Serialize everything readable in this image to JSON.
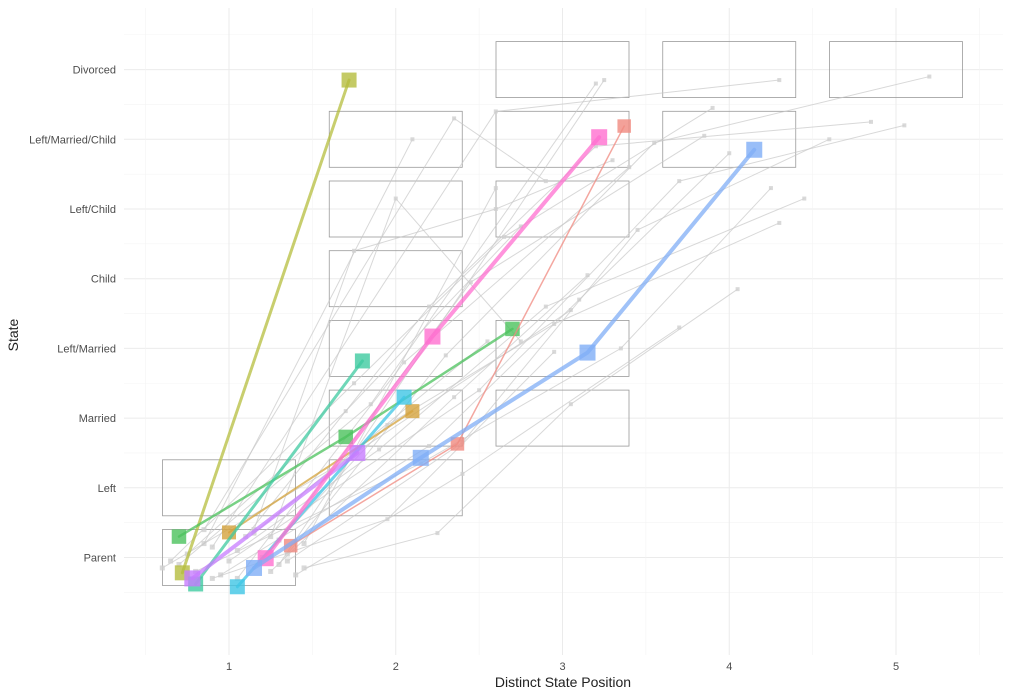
{
  "chart_data": {
    "type": "line",
    "xlabel": "Distinct State Position",
    "ylabel": "State",
    "x_ticks": [
      1,
      2,
      3,
      4,
      5
    ],
    "y_categories": [
      "Parent",
      "Left",
      "Married",
      "Left/Married",
      "Child",
      "Left/Child",
      "Left/Married/Child",
      "Divorced"
    ],
    "xlim": [
      0.35,
      5.65
    ],
    "grid": true,
    "legend": "none",
    "colors": {
      "background_line": "#c8c8c8",
      "grid_major": "#ebebeb",
      "box_stroke": "#9a9a9a"
    },
    "state_boxes": [
      {
        "x": 1,
        "state": "Left"
      },
      {
        "x": 1,
        "state": "Parent"
      },
      {
        "x": 2,
        "state": "Left/Married/Child"
      },
      {
        "x": 2,
        "state": "Left/Child"
      },
      {
        "x": 2,
        "state": "Child"
      },
      {
        "x": 2,
        "state": "Left/Married"
      },
      {
        "x": 2,
        "state": "Married"
      },
      {
        "x": 2,
        "state": "Left"
      },
      {
        "x": 3,
        "state": "Divorced"
      },
      {
        "x": 3,
        "state": "Left/Married/Child"
      },
      {
        "x": 3,
        "state": "Left/Child"
      },
      {
        "x": 3,
        "state": "Left/Married"
      },
      {
        "x": 3,
        "state": "Married"
      },
      {
        "x": 4,
        "state": "Divorced"
      },
      {
        "x": 4,
        "state": "Left/Married/Child"
      },
      {
        "x": 5,
        "state": "Divorced"
      }
    ],
    "background_series": [
      {
        "points": [
          [
            0.85,
            1.2
          ],
          [
            2.1,
            7.0
          ]
        ]
      },
      {
        "points": [
          [
            1.3,
            0.9
          ],
          [
            3.25,
            7.85
          ]
        ]
      },
      {
        "points": [
          [
            1.15,
            1.35
          ],
          [
            2.55,
            4.1
          ]
        ]
      },
      {
        "points": [
          [
            0.7,
            0.9
          ],
          [
            1.85,
            3.2
          ],
          [
            3.2,
            7.8
          ]
        ]
      },
      {
        "points": [
          [
            1.45,
            1.2
          ],
          [
            2.6,
            6.3
          ]
        ]
      },
      {
        "points": [
          [
            1.05,
            0.7
          ],
          [
            2.05,
            3.8
          ],
          [
            3.4,
            6.6
          ]
        ]
      },
      {
        "points": [
          [
            0.9,
            1.15
          ],
          [
            2.6,
            7.4
          ],
          [
            4.3,
            7.85
          ]
        ]
      },
      {
        "points": [
          [
            1.25,
            0.8
          ],
          [
            2.35,
            3.3
          ],
          [
            3.15,
            5.05
          ]
        ]
      },
      {
        "points": [
          [
            0.6,
            0.85
          ],
          [
            1.6,
            2.25
          ],
          [
            3.05,
            4.55
          ]
        ]
      },
      {
        "points": [
          [
            1.4,
            0.75
          ],
          [
            2.4,
            2.2
          ],
          [
            3.7,
            4.3
          ]
        ]
      },
      {
        "points": [
          [
            0.75,
            1.05
          ],
          [
            1.7,
            3.1
          ],
          [
            2.75,
            5.75
          ]
        ]
      },
      {
        "points": [
          [
            1.1,
            1.3
          ],
          [
            2.2,
            4.6
          ],
          [
            3.2,
            6.9
          ],
          [
            4.85,
            7.25
          ]
        ]
      },
      {
        "points": [
          [
            1.35,
            1.05
          ],
          [
            2.3,
            3.9
          ],
          [
            3.55,
            6.95
          ],
          [
            5.2,
            7.9
          ]
        ]
      },
      {
        "points": [
          [
            0.95,
            0.75
          ],
          [
            2.2,
            2.6
          ],
          [
            3.1,
            4.7
          ],
          [
            4.0,
            6.8
          ]
        ]
      },
      {
        "points": [
          [
            1.2,
            1.0
          ],
          [
            1.95,
            2.9
          ],
          [
            2.95,
            4.35
          ],
          [
            4.3,
            5.8
          ]
        ]
      },
      {
        "points": [
          [
            1.0,
            0.95
          ],
          [
            2.5,
            3.4
          ],
          [
            3.7,
            6.4
          ],
          [
            5.05,
            7.2
          ]
        ]
      },
      {
        "points": [
          [
            0.8,
            0.8
          ],
          [
            2.15,
            2.35
          ],
          [
            3.35,
            4.0
          ],
          [
            4.25,
            6.3
          ]
        ]
      },
      {
        "points": [
          [
            1.3,
            1.25
          ],
          [
            2.45,
            4.95
          ],
          [
            3.85,
            7.05
          ]
        ]
      },
      {
        "points": [
          [
            1.05,
            1.1
          ],
          [
            1.9,
            2.55
          ],
          [
            2.9,
            4.6
          ],
          [
            4.45,
            6.15
          ]
        ]
      },
      {
        "points": [
          [
            0.65,
            0.95
          ],
          [
            1.75,
            3.5
          ],
          [
            2.65,
            5.6
          ],
          [
            3.9,
            7.45
          ]
        ]
      },
      {
        "points": [
          [
            1.45,
            0.85
          ],
          [
            2.25,
            1.35
          ],
          [
            3.05,
            3.2
          ],
          [
            4.05,
            4.85
          ]
        ]
      },
      {
        "points": [
          [
            1.15,
            1.4
          ],
          [
            1.75,
            5.4
          ],
          [
            2.6,
            6.0
          ],
          [
            3.3,
            6.7
          ]
        ]
      },
      {
        "points": [
          [
            0.9,
            0.7
          ],
          [
            1.95,
            1.55
          ],
          [
            2.95,
            3.95
          ]
        ]
      },
      {
        "points": [
          [
            1.25,
            1.3
          ],
          [
            2.0,
            6.15
          ],
          [
            2.75,
            4.1
          ]
        ]
      },
      {
        "points": [
          [
            0.85,
            1.4
          ],
          [
            2.35,
            7.3
          ],
          [
            2.9,
            6.4
          ]
        ]
      },
      {
        "points": [
          [
            1.35,
            0.95
          ],
          [
            2.4,
            2.65
          ],
          [
            3.45,
            5.7
          ],
          [
            4.6,
            7.0
          ]
        ]
      }
    ],
    "series": [
      {
        "color": "#B5BD3E",
        "width": 3,
        "points": [
          [
            0.72,
            0.78
          ],
          [
            1.72,
            7.85
          ]
        ]
      },
      {
        "color": "#D4A33C",
        "width": 2,
        "points": [
          [
            1.0,
            1.36
          ],
          [
            2.1,
            3.1
          ]
        ]
      },
      {
        "color": "#4BC25C",
        "width": 2.5,
        "points": [
          [
            0.7,
            1.3
          ],
          [
            1.7,
            2.73
          ],
          [
            2.7,
            4.28
          ]
        ]
      },
      {
        "color": "#3FCAA0",
        "width": 3,
        "points": [
          [
            0.8,
            0.62
          ],
          [
            1.8,
            3.82
          ]
        ]
      },
      {
        "color": "#3EC6E5",
        "width": 3,
        "points": [
          [
            1.05,
            0.58
          ],
          [
            2.05,
            3.3
          ]
        ]
      },
      {
        "color": "#C77CFF",
        "width": 4,
        "points": [
          [
            0.78,
            0.7
          ],
          [
            1.77,
            2.5
          ]
        ]
      },
      {
        "color": "#FF6FD0",
        "width": 4,
        "points": [
          [
            1.22,
            0.99
          ],
          [
            2.22,
            4.17
          ],
          [
            3.22,
            7.03
          ]
        ]
      },
      {
        "color": "#F08A80",
        "width": 1.5,
        "points": [
          [
            1.37,
            1.17
          ],
          [
            2.37,
            2.63
          ],
          [
            3.37,
            7.19
          ]
        ]
      },
      {
        "color": "#80AEF6",
        "width": 4,
        "points": [
          [
            1.15,
            0.85
          ],
          [
            2.15,
            2.43
          ],
          [
            3.15,
            3.94
          ],
          [
            4.15,
            6.85
          ]
        ]
      }
    ]
  }
}
